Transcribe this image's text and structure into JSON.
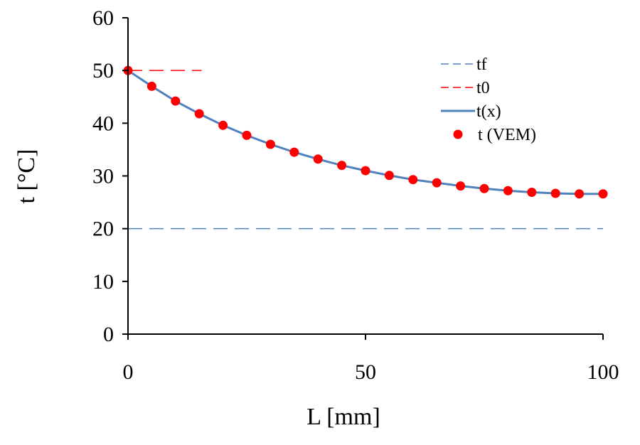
{
  "chart_data": {
    "type": "line",
    "xlabel": "L [mm]",
    "ylabel": "t [°C]",
    "xlim": [
      0,
      100
    ],
    "ylim": [
      0,
      60
    ],
    "x_ticks": [
      0,
      50,
      100
    ],
    "y_ticks": [
      0,
      10,
      20,
      30,
      40,
      50,
      60
    ],
    "grid": false,
    "legend_position": "top-right",
    "series": [
      {
        "name": "tf",
        "style": "dashed",
        "color": "#4f81bd",
        "x": [
          0,
          100
        ],
        "y": [
          20,
          20
        ]
      },
      {
        "name": "t0",
        "style": "dashed",
        "color": "#ff0000",
        "x": [
          0,
          15.5
        ],
        "y": [
          50,
          50
        ]
      },
      {
        "name": "t(x)",
        "style": "solid",
        "color": "#4f81bd",
        "x": [
          0,
          5,
          10,
          15,
          20,
          25,
          30,
          35,
          40,
          45,
          50,
          55,
          60,
          65,
          70,
          75,
          80,
          85,
          90,
          95,
          100
        ],
        "y": [
          50,
          47,
          44.2,
          41.8,
          39.6,
          37.7,
          36,
          34.5,
          33.2,
          32,
          31,
          30.1,
          29.3,
          28.7,
          28.1,
          27.6,
          27.2,
          26.9,
          26.7,
          26.6,
          26.6
        ]
      },
      {
        "name": "t (VEM)",
        "style": "markers",
        "color": "#ff0000",
        "x": [
          0,
          5,
          10,
          15,
          20,
          25,
          30,
          35,
          40,
          45,
          50,
          55,
          60,
          65,
          70,
          75,
          80,
          85,
          90,
          95,
          100
        ],
        "y": [
          50,
          47,
          44.2,
          41.8,
          39.6,
          37.7,
          36,
          34.5,
          33.2,
          32,
          31,
          30.1,
          29.3,
          28.7,
          28.1,
          27.6,
          27.2,
          26.9,
          26.7,
          26.6,
          26.6
        ]
      }
    ]
  }
}
